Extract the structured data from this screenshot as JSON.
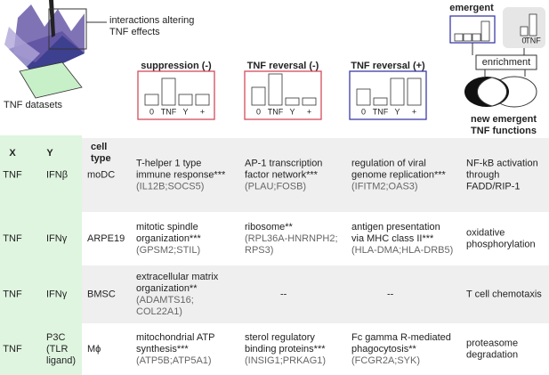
{
  "header": {
    "surface_label": [
      "interactions altering",
      "TNF effects"
    ],
    "datasets_label": "TNF datasets",
    "col_x": "X",
    "col_y": "Y",
    "col_cell": [
      "cell",
      "type"
    ],
    "panels": [
      {
        "title": "suppression (-)"
      },
      {
        "title": "TNF reversal (-)"
      },
      {
        "title": "TNF reversal (+)"
      }
    ],
    "bar_labels": [
      "0",
      "TNF",
      "Y",
      "+"
    ],
    "emergent": "emergent",
    "enrichment": "enrichment",
    "new_functions": [
      "new emergent",
      "TNF functions"
    ]
  },
  "table": {
    "rows": [
      {
        "x": "TNF",
        "y": [
          "IFNβ"
        ],
        "cell": "moDC",
        "cells": [
          {
            "term": [
              "T-helper 1 type",
              "immune response***"
            ],
            "genes": [
              "(IL12B;SOCS5)"
            ]
          },
          {
            "term": [
              "AP-1 transcription",
              "factor network***"
            ],
            "genes": [
              "(PLAU;FOSB)"
            ]
          },
          {
            "term": [
              "regulation of viral",
              "genome replication***"
            ],
            "genes": [
              "(IFITM2;OAS3)"
            ]
          },
          {
            "term": [
              "NF-kB activation",
              "through",
              "FADD/RIP-1"
            ],
            "genes": []
          }
        ]
      },
      {
        "x": "TNF",
        "y": [
          "IFNγ"
        ],
        "cell": "ARPE19",
        "cells": [
          {
            "term": [
              "mitotic spindle",
              "organization***"
            ],
            "genes": [
              "(GPSM2;STIL)"
            ]
          },
          {
            "term": [
              "ribosome**"
            ],
            "genes": [
              "(RPL36A-HNRNPH2;",
              "RPS3)"
            ]
          },
          {
            "term": [
              "antigen presentation",
              "via MHC class II***"
            ],
            "genes": [
              "(HLA-DMA;HLA-DRB5)"
            ]
          },
          {
            "term": [
              "oxidative",
              "phosphorylation"
            ],
            "genes": []
          }
        ]
      },
      {
        "x": "TNF",
        "y": [
          "IFNγ"
        ],
        "cell": "BMSC",
        "cells": [
          {
            "term": [
              "extracellular matrix",
              "organization**"
            ],
            "genes": [
              "(ADAMTS16;",
              "COL22A1)"
            ]
          },
          {
            "term": [
              "--"
            ],
            "genes": []
          },
          {
            "term": [
              "--"
            ],
            "genes": []
          },
          {
            "term": [
              "T cell chemotaxis"
            ],
            "genes": []
          }
        ]
      },
      {
        "x": "TNF",
        "y": [
          "P3C",
          "(TLR",
          "ligand)"
        ],
        "cell": "Mϕ",
        "cells": [
          {
            "term": [
              "mitochondrial ATP",
              "synthesis***"
            ],
            "genes": [
              "(ATP5B;ATP5A1)"
            ]
          },
          {
            "term": [
              "sterol regulatory",
              "binding proteins***"
            ],
            "genes": [
              "(INSIG1;PRKAG1)"
            ]
          },
          {
            "term": [
              "Fc gamma R-mediated",
              "phagocytosis**"
            ],
            "genes": [
              "(FCGR2A;SYK)"
            ]
          },
          {
            "term": [
              "proteasome",
              "degradation"
            ],
            "genes": []
          }
        ]
      }
    ]
  }
}
